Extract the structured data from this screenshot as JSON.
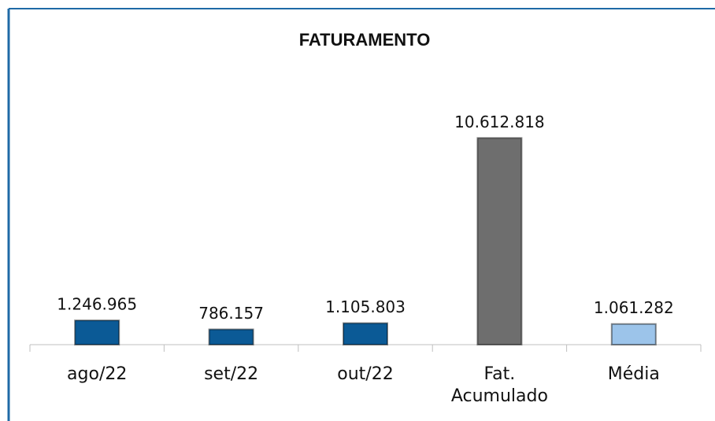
{
  "chart_data": {
    "type": "bar",
    "title": "FATURAMENTO",
    "categories": [
      "ago/22",
      "set/22",
      "out/22",
      "Fat. Acumulado",
      "Média"
    ],
    "values": [
      1246965,
      786157,
      1105803,
      10612818,
      1061282
    ],
    "value_labels": [
      "1.246.965",
      "786.157",
      "1.105.803",
      "10.612.818",
      "1.061.282"
    ],
    "colors": [
      "#0b5a96",
      "#0b5a96",
      "#0b5a96",
      "#6e6e6e",
      "#9cc4ea"
    ],
    "ylim": [
      0,
      12000000
    ]
  }
}
